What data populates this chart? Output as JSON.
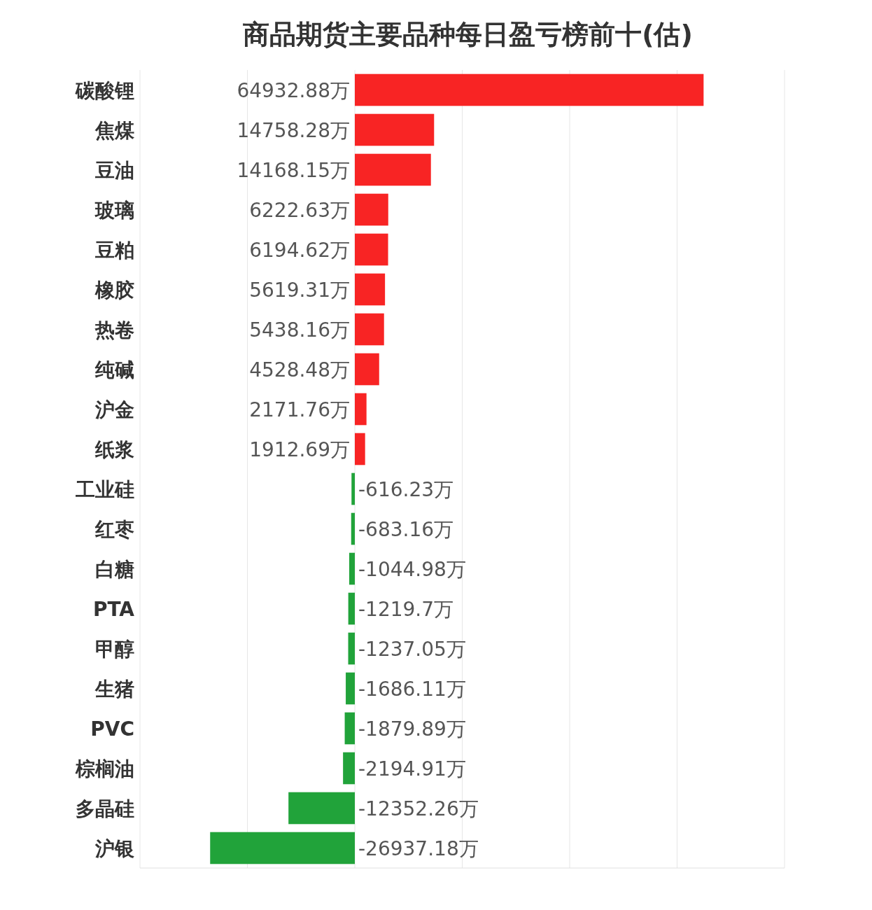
{
  "chart_data": {
    "type": "bar",
    "orientation": "horizontal",
    "title": "商品期货主要品种每日盈亏榜前十(估)",
    "categories": [
      "碳酸锂",
      "焦煤",
      "豆油",
      "玻璃",
      "豆粕",
      "橡胶",
      "热卷",
      "纯碱",
      "沪金",
      "纸浆",
      "工业硅",
      "红枣",
      "白糖",
      "PTA",
      "甲醇",
      "生猪",
      "PVC",
      "棕榈油",
      "多晶硅",
      "沪银"
    ],
    "values": [
      64932.88,
      14758.28,
      14168.15,
      6222.63,
      6194.62,
      5619.31,
      5438.16,
      4528.48,
      2171.76,
      1912.69,
      -616.23,
      -683.16,
      -1044.98,
      -1219.7,
      -1237.05,
      -1686.11,
      -1879.89,
      -2194.91,
      -12352.26,
      -26937.18
    ],
    "value_labels": [
      "64932.88万",
      "14758.28万",
      "14168.15万",
      "6222.63万",
      "6194.62万",
      "5619.31万",
      "5438.16万",
      "4528.48万",
      "2171.76万",
      "1912.69万",
      "-616.23万",
      "-683.16万",
      "-1044.98万",
      "-1219.7万",
      "-1237.05万",
      "-1686.11万",
      "-1879.89万",
      "-2194.91万",
      "-12352.26万",
      "-26937.18万"
    ],
    "colors": [
      "#f82424",
      "#f82424",
      "#f82424",
      "#f82424",
      "#f82424",
      "#f82424",
      "#f82424",
      "#f82424",
      "#f82424",
      "#f82424",
      "#21a33a",
      "#21a33a",
      "#21a33a",
      "#21a33a",
      "#21a33a",
      "#21a33a",
      "#21a33a",
      "#21a33a",
      "#21a33a",
      "#21a33a"
    ],
    "xlim": [
      -40000,
      80000
    ],
    "xticks": [
      {
        "value": -40000,
        "label": null
      },
      {
        "value": -20000,
        "label": null
      },
      {
        "value": 0,
        "label": null
      },
      {
        "value": 20000,
        "label": null
      },
      {
        "value": 40000,
        "label": null
      },
      {
        "value": 60000,
        "label": null
      },
      {
        "value": 80000,
        "label": null
      }
    ],
    "grid": "x",
    "tick_labels": "y"
  }
}
